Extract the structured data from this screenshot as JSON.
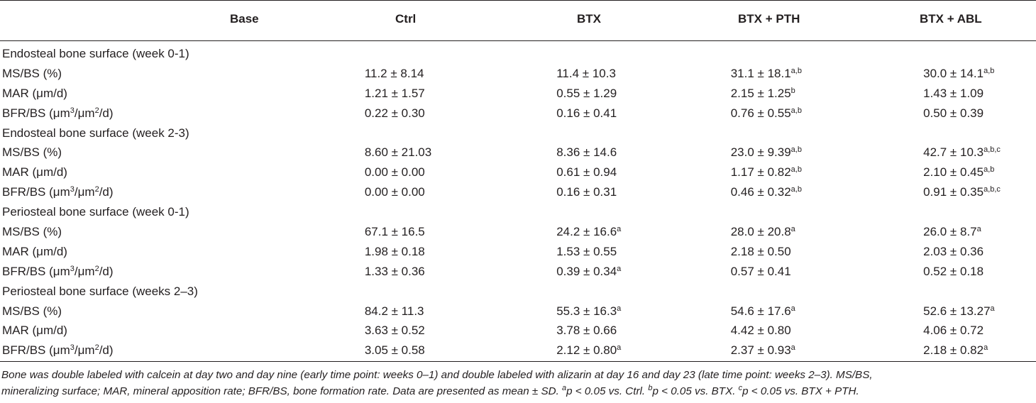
{
  "header": {
    "base": "Base",
    "col1": "Ctrl",
    "col2": "BTX",
    "col3": "BTX + PTH",
    "col4": "BTX + ABL"
  },
  "sections": [
    {
      "title": "Endosteal bone surface (week 0-1)",
      "rows": [
        {
          "label": "MS/BS (%)",
          "ctrl": "11.2 ± 8.14",
          "btx": "11.4 ± 10.3",
          "btx_pth": "31.1 ± 18.1",
          "btx_pth_sup": "a,b",
          "btx_abl": "30.0 ± 14.1",
          "btx_abl_sup": "a,b"
        },
        {
          "label": "MAR (μm/d)",
          "ctrl": "1.21 ± 1.57",
          "btx": "0.55 ± 1.29",
          "btx_pth": "2.15 ± 1.25",
          "btx_pth_sup": "b",
          "btx_abl": "1.43 ± 1.09"
        },
        {
          "label_pre": "BFR/BS (μm",
          "label_sup1": "3",
          "label_mid": "/μm",
          "label_sup2": "2",
          "label_post": "/d)",
          "ctrl": "0.22 ± 0.30",
          "btx": "0.16 ± 0.41",
          "btx_pth": "0.76 ± 0.55",
          "btx_pth_sup": "a,b",
          "btx_abl": "0.50 ± 0.39"
        }
      ]
    },
    {
      "title": "Endosteal bone surface (week 2-3)",
      "rows": [
        {
          "label": "MS/BS (%)",
          "ctrl": "8.60 ± 21.03",
          "btx": "8.36 ± 14.6",
          "btx_pth": "23.0 ± 9.39",
          "btx_pth_sup": "a,b",
          "btx_abl": "42.7 ± 10.3",
          "btx_abl_sup": "a,b,c"
        },
        {
          "label": "MAR (μm/d)",
          "ctrl": "0.00 ± 0.00",
          "btx": "0.61 ± 0.94",
          "btx_pth": "1.17 ± 0.82",
          "btx_pth_sup": "a,b",
          "btx_abl": "2.10 ± 0.45",
          "btx_abl_sup": "a,b"
        },
        {
          "label_pre": "BFR/BS (μm",
          "label_sup1": "3",
          "label_mid": "/μm",
          "label_sup2": "2",
          "label_post": "/d)",
          "ctrl": "0.00 ± 0.00",
          "btx": "0.16 ± 0.31",
          "btx_pth": "0.46 ± 0.32",
          "btx_pth_sup": "a,b",
          "btx_abl": "0.91 ± 0.35",
          "btx_abl_sup": "a,b,c"
        }
      ]
    },
    {
      "title": "Periosteal bone surface (week 0-1)",
      "rows": [
        {
          "label": "MS/BS (%)",
          "ctrl": "67.1 ± 16.5",
          "btx": "24.2 ± 16.6",
          "btx_sup": "a",
          "btx_pth": "28.0 ± 20.8",
          "btx_pth_sup": "a",
          "btx_abl": "26.0 ± 8.7",
          "btx_abl_sup": "a"
        },
        {
          "label": "MAR (μm/d)",
          "ctrl": "1.98 ± 0.18",
          "btx": "1.53 ± 0.55",
          "btx_pth": "2.18 ± 0.50",
          "btx_abl": "2.03 ± 0.36"
        },
        {
          "label_pre": "BFR/BS (μm",
          "label_sup1": "3",
          "label_mid": "/μm",
          "label_sup2": "2",
          "label_post": "/d)",
          "ctrl": "1.33 ± 0.36",
          "btx": "0.39 ± 0.34",
          "btx_sup": "a",
          "btx_pth": "0.57 ± 0.41",
          "btx_abl": "0.52 ± 0.18"
        }
      ]
    },
    {
      "title": "Periosteal bone surface (weeks 2–3)",
      "rows": [
        {
          "label": "MS/BS (%)",
          "ctrl": "84.2 ± 11.3",
          "btx": "55.3 ± 16.3",
          "btx_sup": "a",
          "btx_pth": "54.6 ± 17.6",
          "btx_pth_sup": "a",
          "btx_abl": "52.6 ± 13.27",
          "btx_abl_sup": "a"
        },
        {
          "label": "MAR (μm/d)",
          "ctrl": "3.63 ± 0.52",
          "btx": "3.78 ± 0.66",
          "btx_pth": "4.42 ± 0.80",
          "btx_abl": "4.06 ± 0.72"
        },
        {
          "label_pre": "BFR/BS (μm",
          "label_sup1": "3",
          "label_mid": "/μm",
          "label_sup2": "2",
          "label_post": "/d)",
          "ctrl": "3.05 ± 0.58",
          "btx": "2.12 ± 0.80",
          "btx_sup": "a",
          "btx_pth": "2.37 ± 0.93",
          "btx_pth_sup": "a",
          "btx_abl": "2.18 ± 0.82",
          "btx_abl_sup": "a"
        }
      ]
    }
  ],
  "footnote": {
    "line1": "Bone was double labeled with calcein at day two and day nine (early time point: weeks 0–1) and double labeled with alizarin at day 16 and day 23 (late time point: weeks 2–3). MS/BS,",
    "line2_pre": "mineralizing surface; MAR, mineral apposition rate; BFR/BS, bone formation rate. Data are presented as mean ± SD. ",
    "sup_a": "a",
    "note_a": "p < 0.05 vs. Ctrl. ",
    "sup_b": "b",
    "note_b": "p < 0.05 vs. BTX. ",
    "sup_c": "c",
    "note_c": "p < 0.05 vs. BTX + PTH."
  }
}
